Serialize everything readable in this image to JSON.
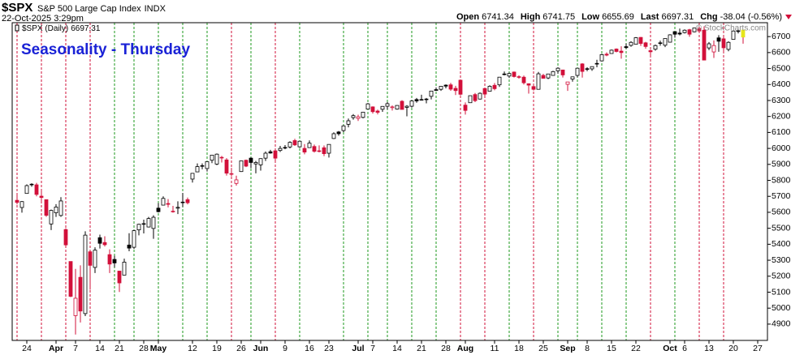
{
  "chart_data": {
    "type": "candlestick",
    "symbol": "$SPX",
    "name": "S&P 500 Large Cap Index",
    "exchange": "INDX",
    "date": "22-Oct-2025 3:29pm",
    "quote": [
      {
        "label": "Open",
        "value": 6741.34
      },
      {
        "label": "High",
        "value": 6741.75
      },
      {
        "label": "Low",
        "value": 6655.69
      },
      {
        "label": "Last",
        "value": 6697.31
      },
      {
        "label": "Chg",
        "value": -38.04,
        "note": "(-0.56%)"
      }
    ],
    "legend_label": "$SPX (Daily)",
    "title": "Seasonality - Thursday",
    "copyright": "© StockCharts.com",
    "up_color": "#000000",
    "down_color": "#d2103a",
    "last_color": "#e6e61a",
    "line_up_color": "#1d9a1d",
    "line_down_color": "#d2103a",
    "xlim": [
      -1,
      154
    ],
    "ylim": [
      4798,
      6787
    ],
    "yticks": [
      4900,
      5000,
      5100,
      5200,
      5300,
      5400,
      5500,
      5600,
      5700,
      5800,
      5900,
      6000,
      6100,
      6200,
      6300,
      6400,
      6500,
      6600,
      6700
    ],
    "xticks": [
      {
        "value": 2,
        "label": "24"
      },
      {
        "value": 8,
        "label": "Apr"
      },
      {
        "value": 12,
        "label": "7"
      },
      {
        "value": 17,
        "label": "14"
      },
      {
        "value": 21,
        "label": "21"
      },
      {
        "value": 26,
        "label": "28"
      },
      {
        "value": 29,
        "label": "May"
      },
      {
        "value": 36,
        "label": "12"
      },
      {
        "value": 41,
        "label": "19"
      },
      {
        "value": 46,
        "label": "26"
      },
      {
        "value": 50,
        "label": "Jun"
      },
      {
        "value": 55,
        "label": "9"
      },
      {
        "value": 60,
        "label": "16"
      },
      {
        "value": 64,
        "label": "23"
      },
      {
        "value": 70,
        "label": "Jul"
      },
      {
        "value": 73,
        "label": "7"
      },
      {
        "value": 78,
        "label": "14"
      },
      {
        "value": 83,
        "label": "21"
      },
      {
        "value": 88,
        "label": "28"
      },
      {
        "value": 92,
        "label": "Aug"
      },
      {
        "value": 98,
        "label": "11"
      },
      {
        "value": 103,
        "label": "18"
      },
      {
        "value": 108,
        "label": "25"
      },
      {
        "value": 113,
        "label": "Sep"
      },
      {
        "value": 117,
        "label": "8"
      },
      {
        "value": 122,
        "label": "15"
      },
      {
        "value": 127,
        "label": "22"
      },
      {
        "value": 134,
        "label": "Oct"
      },
      {
        "value": 137,
        "label": "6"
      },
      {
        "value": 142,
        "label": "13"
      },
      {
        "value": 147,
        "label": "20"
      },
      {
        "value": 152,
        "label": "27"
      }
    ],
    "seasonality_days": [
      0,
      5,
      10,
      15,
      20,
      24,
      29,
      34,
      39,
      44,
      48,
      53,
      58,
      67,
      72,
      76,
      81,
      86,
      91,
      96,
      101,
      106,
      111,
      115,
      120,
      125,
      130,
      135,
      140,
      145
    ],
    "candles": [
      [
        5675,
        5715,
        5650,
        5662
      ],
      [
        5630,
        5670,
        5598,
        5667
      ],
      [
        5718,
        5775,
        5718,
        5767
      ],
      [
        5775,
        5782,
        5760,
        5776
      ],
      [
        5772,
        5784,
        5700,
        5712
      ],
      [
        5701,
        5732,
        5670,
        5693
      ],
      [
        5679,
        5680,
        5572,
        5581
      ],
      [
        5527,
        5617,
        5489,
        5612
      ],
      [
        5597,
        5651,
        5571,
        5633
      ],
      [
        5580,
        5695,
        5572,
        5671
      ],
      [
        5492,
        5500,
        5390,
        5396
      ],
      [
        5292,
        5292,
        5069,
        5074
      ],
      [
        4953,
        5246,
        4835,
        5062
      ],
      [
        5193,
        5268,
        4910,
        4982
      ],
      [
        4966,
        5481,
        4950,
        5457
      ],
      [
        5353,
        5353,
        5115,
        5268
      ],
      [
        5255,
        5381,
        5220,
        5363
      ],
      [
        5441,
        5460,
        5373,
        5406
      ],
      [
        5411,
        5450,
        5386,
        5397
      ],
      [
        5335,
        5368,
        5220,
        5276
      ],
      [
        5305,
        5328,
        5255,
        5283
      ],
      [
        5232,
        5233,
        5101,
        5158
      ],
      [
        5207,
        5310,
        5207,
        5288
      ],
      [
        5395,
        5469,
        5356,
        5376
      ],
      [
        5381,
        5490,
        5371,
        5485
      ],
      [
        5490,
        5528,
        5456,
        5525
      ],
      [
        5529,
        5554,
        5468,
        5529
      ],
      [
        5508,
        5571,
        5505,
        5561
      ],
      [
        5499,
        5581,
        5434,
        5569
      ],
      [
        5626,
        5658,
        5599,
        5604
      ],
      [
        5645,
        5700,
        5645,
        5687
      ],
      [
        5655,
        5683,
        5631,
        5650
      ],
      [
        5605,
        5640,
        5598,
        5607
      ],
      [
        5626,
        5669,
        5589,
        5631
      ],
      [
        5663,
        5721,
        5633,
        5664
      ],
      [
        5679,
        5692,
        5650,
        5660
      ],
      [
        5808,
        5845,
        5786,
        5844
      ],
      [
        5853,
        5906,
        5853,
        5886
      ],
      [
        5888,
        5906,
        5869,
        5892
      ],
      [
        5874,
        5917,
        5855,
        5917
      ],
      [
        5926,
        5959,
        5908,
        5958
      ],
      [
        5902,
        5968,
        5895,
        5964
      ],
      [
        5944,
        5953,
        5912,
        5940
      ],
      [
        5928,
        5939,
        5830,
        5845
      ],
      [
        5841,
        5878,
        5825,
        5842
      ],
      [
        5781,
        5829,
        5767,
        5803
      ],
      [
        5855,
        5923,
        5853,
        5922
      ],
      [
        5926,
        5930,
        5883,
        5889
      ],
      [
        5939,
        5944,
        5876,
        5912
      ],
      [
        5903,
        5922,
        5844,
        5912
      ],
      [
        5897,
        5938,
        5861,
        5936
      ],
      [
        5939,
        5981,
        5921,
        5970
      ],
      [
        5979,
        5991,
        5967,
        5971
      ],
      [
        5985,
        5999,
        5921,
        5939
      ],
      [
        5987,
        6016,
        5978,
        6000
      ],
      [
        6005,
        6021,
        5995,
        6006
      ],
      [
        6009,
        6044,
        6000,
        6038
      ],
      [
        6049,
        6060,
        6016,
        6022
      ],
      [
        6010,
        6045,
        6004,
        6045
      ],
      [
        6000,
        6027,
        5963,
        5977
      ],
      [
        6005,
        6050,
        6005,
        6033
      ],
      [
        6012,
        6024,
        5974,
        5982
      ],
      [
        5985,
        6019,
        5975,
        5981
      ],
      [
        6004,
        6018,
        5952,
        5967
      ],
      [
        5970,
        6025,
        5943,
        6025
      ],
      [
        6062,
        6101,
        6059,
        6092
      ],
      [
        6103,
        6109,
        6080,
        6092
      ],
      [
        6112,
        6146,
        6102,
        6141
      ],
      [
        6151,
        6187,
        6132,
        6173
      ],
      [
        6193,
        6215,
        6180,
        6205
      ],
      [
        6188,
        6211,
        6172,
        6198
      ],
      [
        6194,
        6229,
        6188,
        6227
      ],
      [
        6246,
        6284,
        6244,
        6279
      ],
      [
        6260,
        6263,
        6218,
        6230
      ],
      [
        6234,
        6243,
        6213,
        6226
      ],
      [
        6245,
        6265,
        6229,
        6263
      ],
      [
        6264,
        6290,
        6244,
        6280
      ],
      [
        6255,
        6269,
        6237,
        6260
      ],
      [
        6246,
        6270,
        6242,
        6269
      ],
      [
        6295,
        6302,
        6244,
        6244
      ],
      [
        6257,
        6271,
        6201,
        6264
      ],
      [
        6264,
        6302,
        6256,
        6297
      ],
      [
        6306,
        6316,
        6286,
        6297
      ],
      [
        6306,
        6336,
        6303,
        6306
      ],
      [
        6307,
        6316,
        6282,
        6309
      ],
      [
        6326,
        6360,
        6307,
        6359
      ],
      [
        6368,
        6382,
        6360,
        6363
      ],
      [
        6370,
        6390,
        6360,
        6389
      ],
      [
        6396,
        6401,
        6376,
        6390
      ],
      [
        6398,
        6410,
        6361,
        6371
      ],
      [
        6376,
        6392,
        6334,
        6362
      ],
      [
        6427,
        6427,
        6332,
        6339
      ],
      [
        6271,
        6288,
        6212,
        6238
      ],
      [
        6286,
        6330,
        6286,
        6330
      ],
      [
        6337,
        6347,
        6290,
        6299
      ],
      [
        6309,
        6350,
        6306,
        6345
      ],
      [
        6375,
        6379,
        6315,
        6340
      ],
      [
        6358,
        6395,
        6357,
        6389
      ],
      [
        6395,
        6409,
        6364,
        6374
      ],
      [
        6398,
        6446,
        6385,
        6446
      ],
      [
        6462,
        6481,
        6457,
        6466
      ],
      [
        6453,
        6474,
        6441,
        6469
      ],
      [
        6478,
        6481,
        6444,
        6450
      ],
      [
        6445,
        6458,
        6436,
        6449
      ],
      [
        6446,
        6456,
        6400,
        6411
      ],
      [
        6405,
        6407,
        6343,
        6396
      ],
      [
        6387,
        6394,
        6362,
        6370
      ],
      [
        6370,
        6479,
        6370,
        6467
      ],
      [
        6457,
        6467,
        6438,
        6439
      ],
      [
        6441,
        6466,
        6434,
        6466
      ],
      [
        6457,
        6486,
        6457,
        6481
      ],
      [
        6486,
        6508,
        6468,
        6502
      ],
      [
        6491,
        6493,
        6444,
        6460
      ],
      [
        6401,
        6416,
        6360,
        6416
      ],
      [
        6434,
        6449,
        6418,
        6448
      ],
      [
        6457,
        6502,
        6445,
        6502
      ],
      [
        6529,
        6533,
        6443,
        6482
      ],
      [
        6499,
        6508,
        6483,
        6495
      ],
      [
        6498,
        6513,
        6486,
        6512
      ],
      [
        6532,
        6555,
        6508,
        6532
      ],
      [
        6548,
        6592,
        6545,
        6587
      ],
      [
        6590,
        6601,
        6577,
        6584
      ],
      [
        6594,
        6619,
        6594,
        6615
      ],
      [
        6622,
        6626,
        6601,
        6607
      ],
      [
        6609,
        6639,
        6562,
        6600
      ],
      [
        6637,
        6656,
        6623,
        6631
      ],
      [
        6645,
        6671,
        6637,
        6664
      ],
      [
        6652,
        6697,
        6652,
        6693
      ],
      [
        6695,
        6697,
        6642,
        6657
      ],
      [
        6661,
        6667,
        6624,
        6638
      ],
      [
        6612,
        6618,
        6569,
        6605
      ],
      [
        6621,
        6650,
        6612,
        6644
      ],
      [
        6661,
        6675,
        6643,
        6661
      ],
      [
        6646,
        6688,
        6634,
        6688
      ],
      [
        6665,
        6715,
        6663,
        6711
      ],
      [
        6731,
        6731,
        6693,
        6715
      ],
      [
        6722,
        6750,
        6708,
        6716
      ],
      [
        6725,
        6745,
        6720,
        6740
      ],
      [
        6743,
        6748,
        6699,
        6715
      ],
      [
        6730,
        6756,
        6727,
        6754
      ],
      [
        6751,
        6760,
        6726,
        6735
      ],
      [
        6740,
        6764,
        6551,
        6553
      ],
      [
        6629,
        6666,
        6615,
        6655
      ],
      [
        6604,
        6676,
        6566,
        6644
      ],
      [
        6692,
        6709,
        6605,
        6671
      ],
      [
        6686,
        6704,
        6603,
        6630
      ],
      [
        6620,
        6670,
        6608,
        6664
      ],
      [
        6683,
        6738,
        6683,
        6735
      ],
      [
        6736,
        6747,
        6720,
        6735
      ],
      [
        6741,
        6742,
        6656,
        6697
      ]
    ]
  }
}
